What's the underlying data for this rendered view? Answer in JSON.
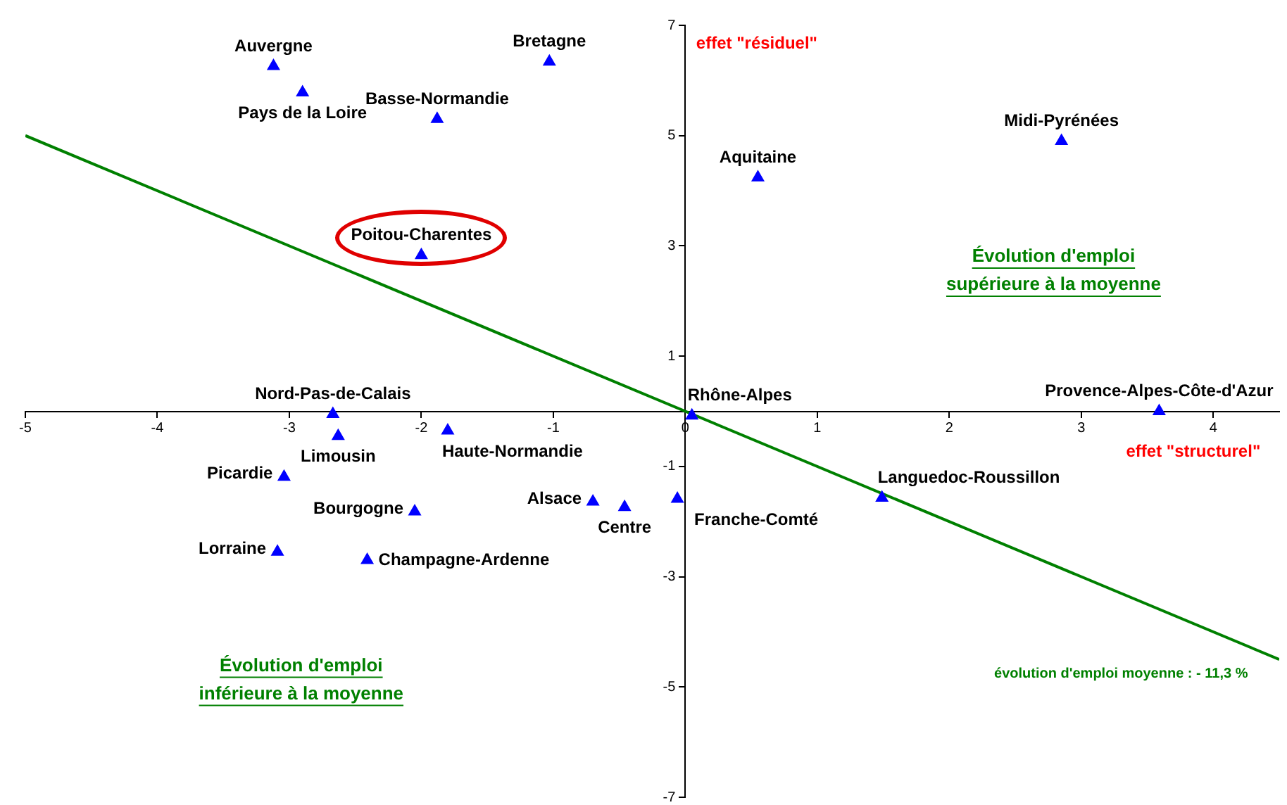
{
  "chart_data": {
    "type": "scatter",
    "marker": "triangle",
    "grid": false,
    "legend": false,
    "xlim": [
      -5,
      4.5
    ],
    "xticks": [
      -5,
      -4,
      -3,
      -2,
      -1,
      0,
      1,
      2,
      3,
      4
    ],
    "ylim": [
      -7,
      7
    ],
    "yticks": [
      -7,
      -5,
      -3,
      -1,
      1,
      3,
      5,
      7
    ],
    "series": [
      {
        "type": "scatter",
        "color": "#0000ff",
        "x": [
          -3.12,
          -2.9,
          -1.03,
          -1.88,
          -2.0,
          0.55,
          2.85,
          -2.67,
          -2.63,
          -1.8,
          0.05,
          3.59,
          -3.04,
          -2.05,
          -0.7,
          -0.46,
          -0.06,
          1.49,
          -3.09,
          -2.41
        ],
        "values": [
          6.26,
          5.78,
          6.34,
          5.3,
          2.83,
          4.24,
          4.9,
          -0.05,
          -0.45,
          -0.35,
          -0.08,
          0.0,
          -1.19,
          -1.82,
          -1.64,
          -1.74,
          -1.59,
          -1.57,
          -2.55,
          -2.7
        ]
      },
      {
        "type": "line",
        "color": "#008000",
        "marker": "none",
        "x": [
          -5,
          4.5
        ],
        "values": [
          5,
          -4.5
        ]
      }
    ],
    "annotations": [
      {
        "text": "Auvergne",
        "x": -3.12,
        "y": 6.26
      },
      {
        "text": "Pays de la Loire",
        "x": -2.9,
        "y": 5.78
      },
      {
        "text": "Bretagne",
        "x": -1.03,
        "y": 6.34
      },
      {
        "text": "Basse-Normandie",
        "x": -1.88,
        "y": 5.3
      },
      {
        "text": "Poitou-Charentes",
        "x": -2.0,
        "y": 2.83
      },
      {
        "text": "Aquitaine",
        "x": 0.55,
        "y": 4.24
      },
      {
        "text": "Midi-Pyrénées",
        "x": 2.85,
        "y": 4.9
      },
      {
        "text": "Nord-Pas-de-Calais",
        "x": -2.67,
        "y": -0.05
      },
      {
        "text": "Limousin",
        "x": -2.63,
        "y": -0.45
      },
      {
        "text": "Haute-Normandie",
        "x": -1.8,
        "y": -0.35
      },
      {
        "text": "Rhône-Alpes",
        "x": 0.05,
        "y": -0.08
      },
      {
        "text": "Provence-Alpes-Côte-d'Azur",
        "x": 3.59,
        "y": 0.0
      },
      {
        "text": "Picardie",
        "x": -3.04,
        "y": -1.19
      },
      {
        "text": "Bourgogne",
        "x": -2.05,
        "y": -1.82
      },
      {
        "text": "Alsace",
        "x": -0.7,
        "y": -1.64
      },
      {
        "text": "Centre",
        "x": -0.46,
        "y": -1.74
      },
      {
        "text": "Franche-Comté",
        "x": -0.06,
        "y": -1.59
      },
      {
        "text": "Languedoc-Roussillon",
        "x": 1.49,
        "y": -1.57
      },
      {
        "text": "Lorraine",
        "x": -3.09,
        "y": -2.55
      },
      {
        "text": "Champagne-Ardenne",
        "x": -2.41,
        "y": -2.7
      },
      "effet \"résiduel\"",
      "effet \"structurel\"",
      "Évolution d'emploi\nsupérieure à la moyenne",
      "Évolution d'emploi\ninférieure à la moyenne",
      "évolution d'emploi moyenne : - 11,3 %"
    ]
  }
}
